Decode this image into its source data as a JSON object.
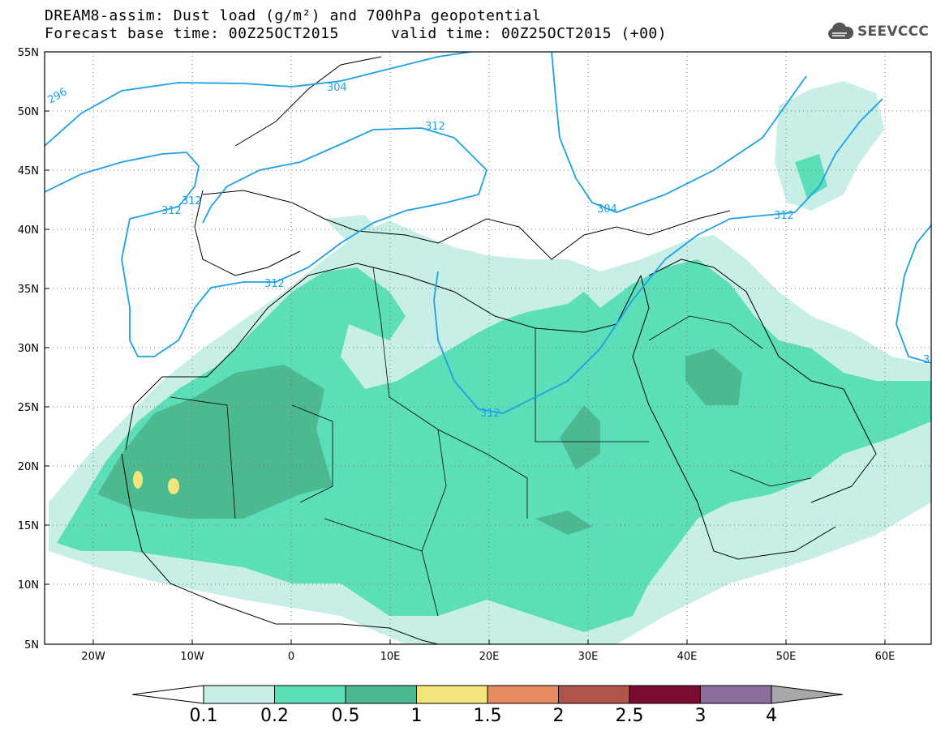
{
  "header": {
    "title_line1": "DREAM8-assim: Dust load (g/m²) and 700hPa geopotential",
    "base_time": "Forecast base time: 00Z25OCT2015",
    "valid_time": "valid time: 00Z25OCT2015 (+00)"
  },
  "logo": {
    "text": "SEEVCCC",
    "icon": "cloud-logo-icon"
  },
  "map": {
    "lat_labels": [
      "55N",
      "50N",
      "45N",
      "40N",
      "35N",
      "30N",
      "25N",
      "20N",
      "15N",
      "10N",
      "5N"
    ],
    "lon_labels": [
      "20W",
      "10W",
      "0",
      "10E",
      "20E",
      "30E",
      "40E",
      "50E",
      "60E"
    ],
    "contour_labels": [
      "296",
      "304",
      "312",
      "312",
      "312",
      "312",
      "304",
      "312",
      "312",
      "3"
    ]
  },
  "colorbar": {
    "labels": [
      "0.1",
      "0.2",
      "0.5",
      "1",
      "1.5",
      "2",
      "2.5",
      "3",
      "4"
    ],
    "colors": [
      "#c7efe8",
      "#5cdeb8",
      "#4cb991",
      "#f1e57c",
      "#e58a63",
      "#b0544c",
      "#7a0c30",
      "#8c6e9c",
      "#a8a8a8"
    ]
  }
}
